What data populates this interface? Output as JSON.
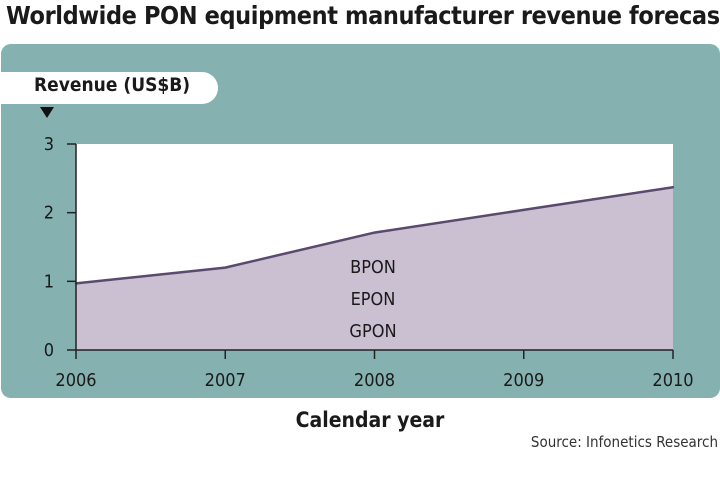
{
  "title": "Worldwide PON equipment manufacturer revenue forecast",
  "colors": {
    "panel": "#85b2b1",
    "area_fill": "#cbbfd2",
    "line": "#5a4a6e",
    "plot_bg": "#ffffff"
  },
  "chart_data": {
    "type": "area",
    "title": "Worldwide PON equipment manufacturer revenue forecast",
    "xlabel": "Calendar year",
    "ylabel": "Revenue (US$B)",
    "x": [
      "2006",
      "2007",
      "2008",
      "2009",
      "2010"
    ],
    "y_ticks": [
      "0",
      "1",
      "2",
      "3"
    ],
    "ylim": [
      0,
      3
    ],
    "series": [
      {
        "values": [
          0.97,
          1.2,
          1.71,
          2.04,
          2.37
        ]
      }
    ],
    "area_labels": [
      "BPON",
      "EPON",
      "GPON"
    ],
    "grid": false,
    "source": "Source: Infonetics Research"
  }
}
